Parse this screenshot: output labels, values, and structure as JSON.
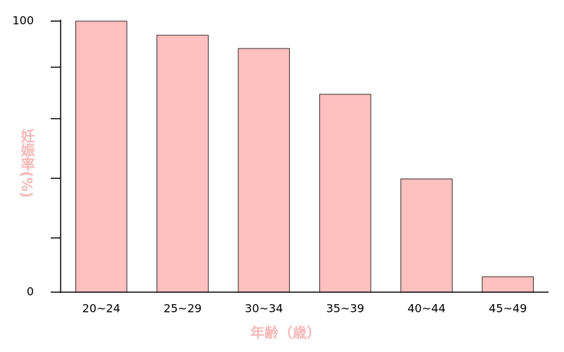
{
  "chart_data": {
    "type": "bar",
    "x_label": "年齢（歳）",
    "y_label": "妊娠率(%)",
    "categories": [
      "20~24",
      "25~29",
      "30~34",
      "35~39",
      "40~44",
      "45~49"
    ],
    "values": [
      100,
      94.8,
      89.9,
      73,
      41.8,
      5.7
    ],
    "color": "#ffc0c0",
    "edge_color": "#000000",
    "ylim": [
      0,
      100
    ],
    "yticks": [
      0,
      100
    ],
    "minor_yticks": [
      20,
      42,
      64,
      83
    ]
  }
}
